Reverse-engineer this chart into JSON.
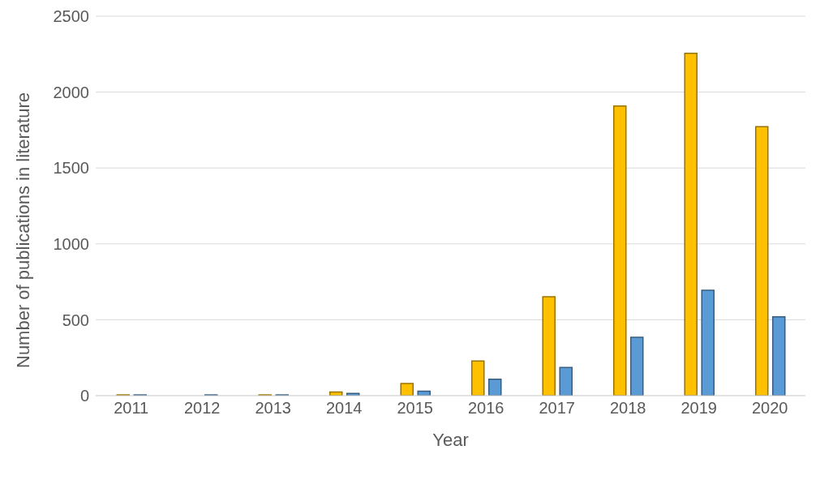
{
  "chart_data": {
    "type": "bar",
    "xlabel": "Year",
    "ylabel": "Number of publications in literature",
    "categories": [
      "2011",
      "2012",
      "2013",
      "2014",
      "2015",
      "2016",
      "2017",
      "2018",
      "2019",
      "2020"
    ],
    "series": [
      {
        "color": "#ffc000",
        "values": [
          5,
          0,
          5,
          24,
          80,
          228,
          652,
          1908,
          2255,
          1772
        ]
      },
      {
        "color": "#5b9bd5",
        "values": [
          5,
          5,
          5,
          15,
          30,
          108,
          185,
          385,
          694,
          520
        ]
      }
    ],
    "ylim": [
      0,
      2500
    ],
    "yticks": [
      0,
      500,
      1000,
      1500,
      2000,
      2500
    ],
    "grid": "y",
    "legend": false
  }
}
